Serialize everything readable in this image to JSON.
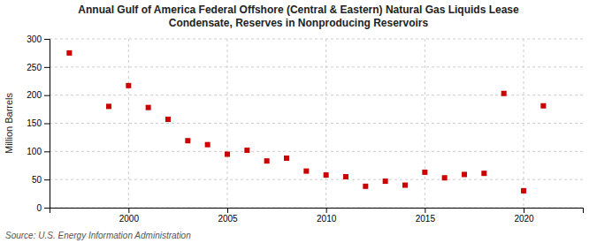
{
  "chart_data": {
    "type": "scatter",
    "title": "Annual Gulf of America Federal Offshore (Central & Eastern) Natural Gas Liquids Lease\nCondensate, Reserves in Nonproducing Reservoirs",
    "y_label": "Million Barrels",
    "annotations": [
      "Source: U.S. Energy Information Administration"
    ],
    "x": [
      1997,
      1999,
      2000,
      2001,
      2002,
      2003,
      2004,
      2005,
      2006,
      2007,
      2008,
      2009,
      2010,
      2011,
      2012,
      2013,
      2014,
      2015,
      2016,
      2017,
      2018,
      2019,
      2020,
      2021
    ],
    "values": [
      275,
      180,
      217,
      178,
      157,
      119,
      112,
      95,
      102,
      83,
      88,
      65,
      58,
      55,
      38,
      47,
      40,
      63,
      53,
      59,
      61,
      203,
      30,
      181
    ],
    "color": "#cc0000",
    "marker": "square",
    "xlim": [
      1996,
      2023
    ],
    "ylim": [
      0,
      300
    ],
    "xticks": [
      2000,
      2005,
      2010,
      2015,
      2020
    ],
    "yticks": [
      0,
      50,
      100,
      150,
      200,
      250,
      300
    ],
    "grid": true
  }
}
